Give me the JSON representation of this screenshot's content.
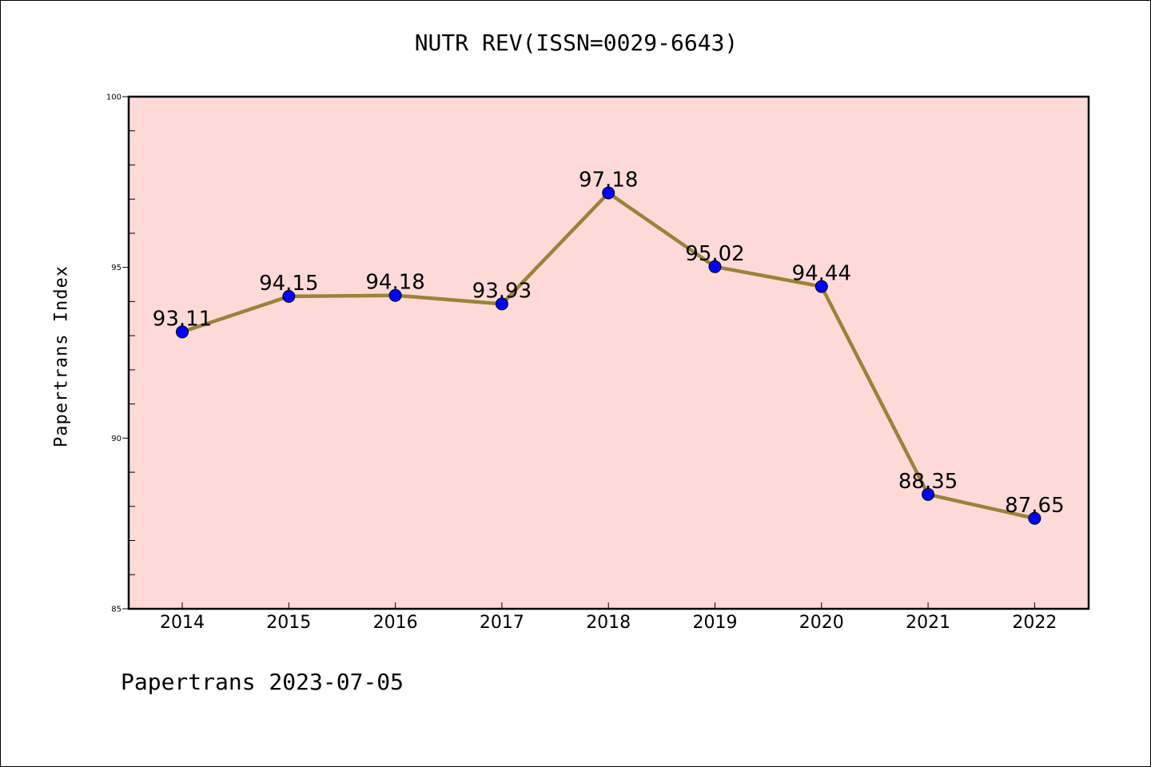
{
  "title": "NUTR REV(ISSN=0029-6643)",
  "footer": "Papertrans 2023-07-05",
  "colors": {
    "plot_background": "#fddad8",
    "line": "#9a8238",
    "marker": "#0000ff",
    "axis": "#000000"
  },
  "chart_data": {
    "type": "line",
    "title": "NUTR REV(ISSN=0029-6643)",
    "xlabel": "",
    "ylabel": "Papertrans Index",
    "categories": [
      "2014",
      "2015",
      "2016",
      "2017",
      "2018",
      "2019",
      "2020",
      "2021",
      "2022"
    ],
    "series": [
      {
        "values": [
          93.11,
          94.15,
          94.18,
          93.93,
          97.18,
          95.02,
          94.44,
          88.35,
          87.65
        ],
        "labels": [
          "93.11",
          "94.15",
          "94.18",
          "93.93",
          "97.18",
          "95.02",
          "94.44",
          "88.35",
          "87.65"
        ]
      }
    ],
    "ylim": [
      85,
      100
    ],
    "y_major_ticks": [
      85,
      90,
      95,
      100
    ],
    "y_minor_step": 1,
    "grid": false,
    "legend": "none"
  }
}
